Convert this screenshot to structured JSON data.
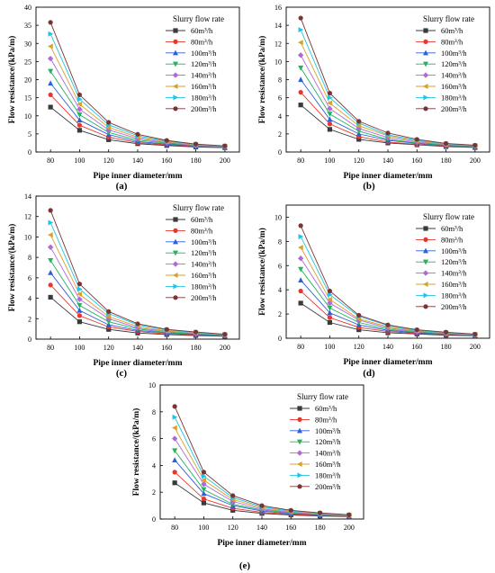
{
  "chart_data": [
    {
      "type": "line",
      "panel_label": "(a)",
      "xlabel": "Pipe inner diameter/mm",
      "ylabel": "Flow resistance/(kPa/m)",
      "legend_title": "Slurry flow rate",
      "legend_position": "top-right",
      "grid": false,
      "x": [
        80,
        100,
        120,
        140,
        160,
        180,
        200
      ],
      "xlim": [
        70,
        210
      ],
      "ylim": [
        0,
        40
      ],
      "y_ticks": [
        0,
        5,
        10,
        15,
        20,
        25,
        30,
        35,
        40
      ],
      "series": [
        {
          "name": "60m³/h",
          "values": [
            12.4,
            6.0,
            3.4,
            2.3,
            1.8,
            1.4,
            1.2
          ]
        },
        {
          "name": "80m³/h",
          "values": [
            15.8,
            7.4,
            4.1,
            2.6,
            2.0,
            1.5,
            1.3
          ]
        },
        {
          "name": "100m³/h",
          "values": [
            19.0,
            8.8,
            4.8,
            2.9,
            2.2,
            1.6,
            1.3
          ]
        },
        {
          "name": "120m³/h",
          "values": [
            22.3,
            10.3,
            5.4,
            3.3,
            2.4,
            1.7,
            1.4
          ]
        },
        {
          "name": "140m³/h",
          "values": [
            25.8,
            11.8,
            6.1,
            3.7,
            2.6,
            1.8,
            1.5
          ]
        },
        {
          "name": "160m³/h",
          "values": [
            29.2,
            13.2,
            6.8,
            4.1,
            2.8,
            2.0,
            1.6
          ]
        },
        {
          "name": "180m³/h",
          "values": [
            32.6,
            14.6,
            7.5,
            4.5,
            3.0,
            2.1,
            1.6
          ]
        },
        {
          "name": "200m³/h",
          "values": [
            35.8,
            15.8,
            8.2,
            4.9,
            3.2,
            2.2,
            1.7
          ]
        }
      ]
    },
    {
      "type": "line",
      "panel_label": "(b)",
      "xlabel": "Pipe inner diameter/mm",
      "ylabel": "Flow resistance/(kPa/m)",
      "legend_title": "Slurry flow rate",
      "legend_position": "top-right",
      "grid": false,
      "x": [
        80,
        100,
        120,
        140,
        160,
        180,
        200
      ],
      "xlim": [
        70,
        210
      ],
      "ylim": [
        0,
        16
      ],
      "y_ticks": [
        0,
        2,
        4,
        6,
        8,
        10,
        12,
        14,
        16
      ],
      "series": [
        {
          "name": "60m³/h",
          "values": [
            5.2,
            2.5,
            1.4,
            1.0,
            0.8,
            0.6,
            0.5
          ]
        },
        {
          "name": "80m³/h",
          "values": [
            6.6,
            3.1,
            1.7,
            1.1,
            0.85,
            0.65,
            0.55
          ]
        },
        {
          "name": "100m³/h",
          "values": [
            8.0,
            3.6,
            2.0,
            1.3,
            0.95,
            0.7,
            0.6
          ]
        },
        {
          "name": "120m³/h",
          "values": [
            9.3,
            4.2,
            2.3,
            1.4,
            1.0,
            0.75,
            0.6
          ]
        },
        {
          "name": "140m³/h",
          "values": [
            10.7,
            4.8,
            2.6,
            1.6,
            1.1,
            0.8,
            0.65
          ]
        },
        {
          "name": "160m³/h",
          "values": [
            12.1,
            5.4,
            2.9,
            1.8,
            1.2,
            0.85,
            0.7
          ]
        },
        {
          "name": "180m³/h",
          "values": [
            13.5,
            6.0,
            3.2,
            1.9,
            1.3,
            0.9,
            0.7
          ]
        },
        {
          "name": "200m³/h",
          "values": [
            14.8,
            6.5,
            3.4,
            2.1,
            1.4,
            0.95,
            0.75
          ]
        }
      ]
    },
    {
      "type": "line",
      "panel_label": "(c)",
      "xlabel": "Pipe inner diameter/mm",
      "ylabel": "Flow resistance/(kPa/m)",
      "legend_title": "Slurry flow rate",
      "legend_position": "top-right",
      "grid": false,
      "x": [
        80,
        100,
        120,
        140,
        160,
        180,
        200
      ],
      "xlim": [
        70,
        210
      ],
      "ylim": [
        0,
        14
      ],
      "y_ticks": [
        0,
        2,
        4,
        6,
        8,
        10,
        12,
        14
      ],
      "series": [
        {
          "name": "60m³/h",
          "values": [
            4.1,
            1.7,
            0.95,
            0.6,
            0.45,
            0.35,
            0.28
          ]
        },
        {
          "name": "80m³/h",
          "values": [
            5.3,
            2.3,
            1.2,
            0.75,
            0.5,
            0.4,
            0.3
          ]
        },
        {
          "name": "100m³/h",
          "values": [
            6.5,
            2.8,
            1.4,
            0.85,
            0.6,
            0.45,
            0.33
          ]
        },
        {
          "name": "120m³/h",
          "values": [
            7.7,
            3.3,
            1.7,
            1.0,
            0.65,
            0.5,
            0.36
          ]
        },
        {
          "name": "140m³/h",
          "values": [
            9.0,
            3.9,
            2.0,
            1.1,
            0.75,
            0.55,
            0.4
          ]
        },
        {
          "name": "160m³/h",
          "values": [
            10.2,
            4.4,
            2.2,
            1.25,
            0.8,
            0.6,
            0.42
          ]
        },
        {
          "name": "180m³/h",
          "values": [
            11.4,
            4.9,
            2.5,
            1.4,
            0.9,
            0.65,
            0.45
          ]
        },
        {
          "name": "200m³/h",
          "values": [
            12.6,
            5.4,
            2.7,
            1.5,
            0.95,
            0.7,
            0.48
          ]
        }
      ]
    },
    {
      "type": "line",
      "panel_label": "(d)",
      "xlabel": "Pipe inner diameter/mm",
      "ylabel": "Flow resistance/(kPa/m)",
      "legend_title": "Slurry flow rate",
      "legend_position": "top-right",
      "grid": false,
      "x": [
        80,
        100,
        120,
        140,
        160,
        180,
        200
      ],
      "xlim": [
        70,
        210
      ],
      "ylim": [
        0,
        11
      ],
      "y_ticks": [
        0,
        2,
        4,
        6,
        8,
        10
      ],
      "series": [
        {
          "name": "60m³/h",
          "values": [
            2.9,
            1.3,
            0.7,
            0.45,
            0.35,
            0.25,
            0.2
          ]
        },
        {
          "name": "80m³/h",
          "values": [
            3.9,
            1.7,
            0.9,
            0.55,
            0.4,
            0.3,
            0.22
          ]
        },
        {
          "name": "100m³/h",
          "values": [
            4.8,
            2.1,
            1.1,
            0.65,
            0.45,
            0.33,
            0.24
          ]
        },
        {
          "name": "120m³/h",
          "values": [
            5.7,
            2.5,
            1.3,
            0.75,
            0.5,
            0.36,
            0.26
          ]
        },
        {
          "name": "140m³/h",
          "values": [
            6.6,
            2.9,
            1.5,
            0.85,
            0.55,
            0.4,
            0.28
          ]
        },
        {
          "name": "160m³/h",
          "values": [
            7.5,
            3.2,
            1.6,
            0.95,
            0.6,
            0.43,
            0.3
          ]
        },
        {
          "name": "180m³/h",
          "values": [
            8.4,
            3.6,
            1.8,
            1.05,
            0.65,
            0.46,
            0.32
          ]
        },
        {
          "name": "200m³/h",
          "values": [
            9.3,
            3.9,
            1.9,
            1.1,
            0.7,
            0.5,
            0.34
          ]
        }
      ]
    },
    {
      "type": "line",
      "panel_label": "(e)",
      "xlabel": "Pipe inner diameter/mm",
      "ylabel": "Flow resistance/(kPa/m)",
      "legend_title": "Slurry flow rate",
      "legend_position": "top-right",
      "grid": false,
      "x": [
        80,
        100,
        120,
        140,
        160,
        180,
        200
      ],
      "xlim": [
        70,
        210
      ],
      "ylim": [
        0,
        10
      ],
      "y_ticks": [
        0,
        2,
        4,
        6,
        8,
        10
      ],
      "series": [
        {
          "name": "60m³/h",
          "values": [
            2.7,
            1.2,
            0.65,
            0.42,
            0.3,
            0.22,
            0.18
          ]
        },
        {
          "name": "80m³/h",
          "values": [
            3.5,
            1.5,
            0.8,
            0.5,
            0.35,
            0.26,
            0.2
          ]
        },
        {
          "name": "100m³/h",
          "values": [
            4.4,
            1.9,
            1.0,
            0.6,
            0.4,
            0.3,
            0.22
          ]
        },
        {
          "name": "120m³/h",
          "values": [
            5.1,
            2.2,
            1.1,
            0.68,
            0.45,
            0.33,
            0.24
          ]
        },
        {
          "name": "140m³/h",
          "values": [
            6.0,
            2.6,
            1.3,
            0.76,
            0.5,
            0.36,
            0.26
          ]
        },
        {
          "name": "160m³/h",
          "values": [
            6.8,
            2.9,
            1.45,
            0.85,
            0.55,
            0.4,
            0.28
          ]
        },
        {
          "name": "180m³/h",
          "values": [
            7.6,
            3.2,
            1.6,
            0.92,
            0.6,
            0.43,
            0.3
          ]
        },
        {
          "name": "200m³/h",
          "values": [
            8.4,
            3.5,
            1.75,
            1.0,
            0.65,
            0.46,
            0.32
          ]
        }
      ]
    }
  ],
  "style": {
    "series_colors": [
      "#3a3a3a",
      "#e8362d",
      "#2c5fd8",
      "#22b45a",
      "#b06ad6",
      "#d8a22a",
      "#20c4e4",
      "#7a3434"
    ],
    "series_markers": [
      "square",
      "circle",
      "triangle-up",
      "triangle-down",
      "diamond",
      "triangle-left",
      "triangle-right",
      "circle"
    ]
  }
}
